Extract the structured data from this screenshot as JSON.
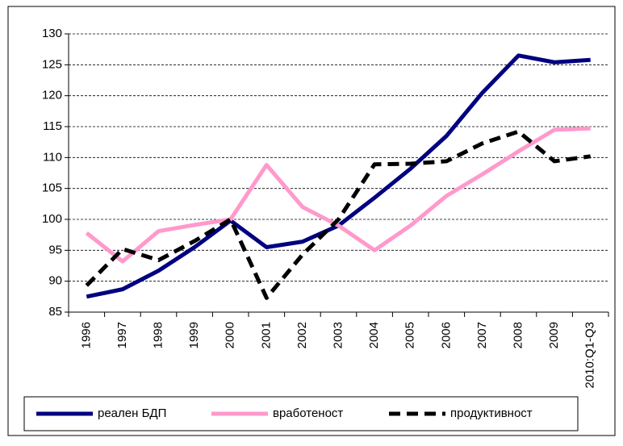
{
  "chart_data": {
    "type": "line",
    "categories": [
      "1996",
      "1997",
      "1998",
      "1999",
      "2000",
      "2001",
      "2002",
      "2003",
      "2004",
      "2005",
      "2006",
      "2007",
      "2008",
      "2009",
      "2010:Q1-Q3"
    ],
    "series": [
      {
        "name": "реален БДП",
        "color": "#000080",
        "dash": false,
        "values": [
          87.5,
          88.7,
          91.7,
          95.5,
          99.8,
          95.5,
          96.4,
          99,
          103.5,
          108.2,
          113.5,
          120.5,
          126.5,
          125.4,
          125.8
        ]
      },
      {
        "name": "вработеност",
        "color": "#ff99cc",
        "dash": false,
        "values": [
          97.8,
          93.2,
          98.1,
          99.1,
          100,
          108.8,
          102,
          99,
          95,
          99,
          103.8,
          107.3,
          111,
          114.5,
          114.7
        ]
      },
      {
        "name": "продуктивност",
        "color": "#000000",
        "dash": true,
        "values": [
          89.3,
          95.2,
          93.4,
          96.5,
          100,
          87.3,
          94.3,
          100,
          108.9,
          109,
          109.4,
          112.3,
          114.2,
          109.4,
          110.2
        ]
      }
    ],
    "ylim": [
      85,
      130
    ],
    "yticks": [
      85,
      90,
      95,
      100,
      105,
      110,
      115,
      120,
      125,
      130
    ],
    "grid": true,
    "legend": "bottom"
  }
}
